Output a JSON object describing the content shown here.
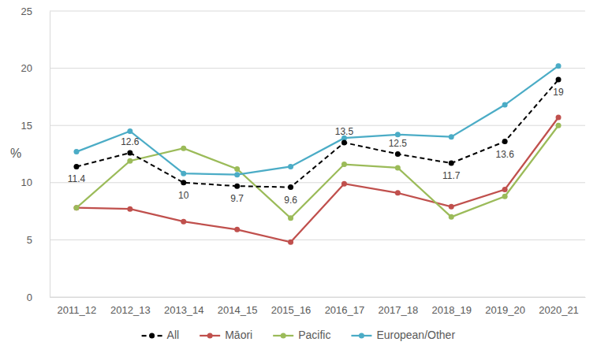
{
  "chart_data": {
    "type": "line",
    "y_label": "%",
    "categories": [
      "2011_12",
      "2012_13",
      "2013_14",
      "2014_15",
      "2015_16",
      "2016_17",
      "2017_18",
      "2018_19",
      "2019_20",
      "2020_21"
    ],
    "series": [
      {
        "name": "All",
        "color": "#000000",
        "line_style": "dashed",
        "marker": "circle",
        "data_labels": true,
        "values": [
          11.4,
          12.6,
          10,
          9.7,
          9.6,
          13.5,
          12.5,
          11.7,
          13.6,
          19
        ]
      },
      {
        "name": "Māori",
        "color": "#c0504d",
        "line_style": "solid",
        "marker": "circle",
        "values": [
          7.8,
          7.7,
          6.6,
          5.9,
          4.8,
          9.9,
          9.1,
          7.9,
          9.4,
          15.7
        ]
      },
      {
        "name": "Pacific",
        "color": "#9bbb59",
        "line_style": "solid",
        "marker": "circle",
        "values": [
          7.8,
          11.9,
          13.0,
          11.2,
          6.9,
          11.6,
          11.3,
          7.0,
          8.8,
          15.0
        ]
      },
      {
        "name": "European/Other",
        "color": "#4bacc6",
        "line_style": "solid",
        "marker": "circle",
        "values": [
          12.7,
          14.5,
          10.8,
          10.7,
          11.4,
          13.9,
          14.2,
          14.0,
          16.8,
          20.2
        ]
      }
    ],
    "ylim": [
      0,
      25
    ],
    "yticks": [
      0,
      5,
      10,
      15,
      20,
      25
    ],
    "grid": true,
    "legend": "bottom"
  }
}
